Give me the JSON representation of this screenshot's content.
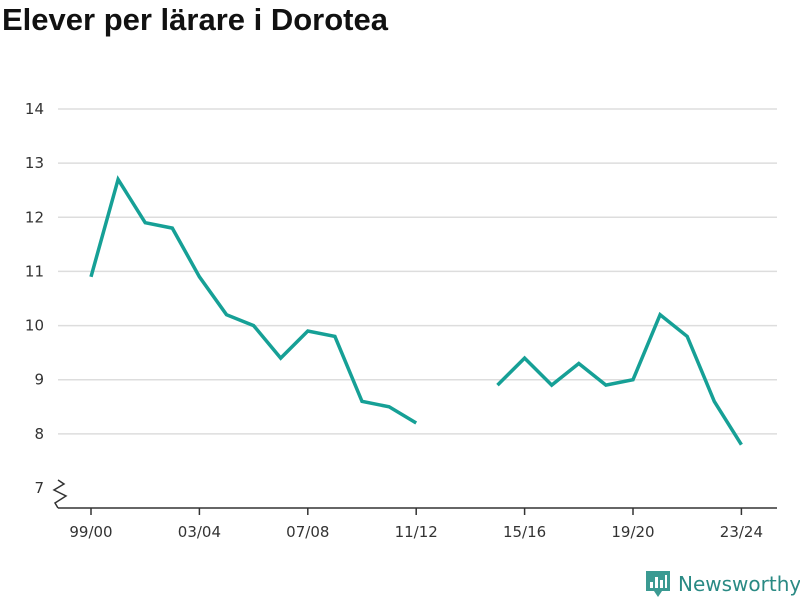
{
  "chart_data": {
    "type": "line",
    "title": "Elever per lärare i Dorotea",
    "xlabel": "",
    "ylabel": "",
    "x": [
      "99/00",
      "00/01",
      "01/02",
      "02/03",
      "03/04",
      "04/05",
      "05/06",
      "06/07",
      "07/08",
      "08/09",
      "09/10",
      "10/11",
      "11/12",
      "12/13",
      "13/14",
      "14/15",
      "15/16",
      "16/17",
      "17/18",
      "18/19",
      "19/20",
      "20/21",
      "21/22",
      "22/23",
      "23/24"
    ],
    "x_tick_labels": [
      "99/00",
      "03/04",
      "07/08",
      "11/12",
      "15/16",
      "19/20",
      "23/24"
    ],
    "series": [
      {
        "values": [
          10.9,
          12.7,
          11.9,
          11.8,
          10.9,
          10.2,
          10.0,
          9.4,
          9.9,
          9.8,
          8.6,
          8.5,
          8.2,
          null,
          null,
          8.9,
          9.4,
          8.9,
          9.3,
          8.9,
          9.0,
          10.2,
          9.8,
          8.6,
          7.8
        ]
      }
    ],
    "y_ticks": [
      7,
      8,
      9,
      10,
      11,
      12,
      13,
      14
    ],
    "ylim": [
      7,
      14
    ],
    "y_axis_break": true,
    "grid": true,
    "line_color": "#16a096"
  },
  "branding": {
    "text": "Newsworthy",
    "color": "#2a8a84"
  }
}
